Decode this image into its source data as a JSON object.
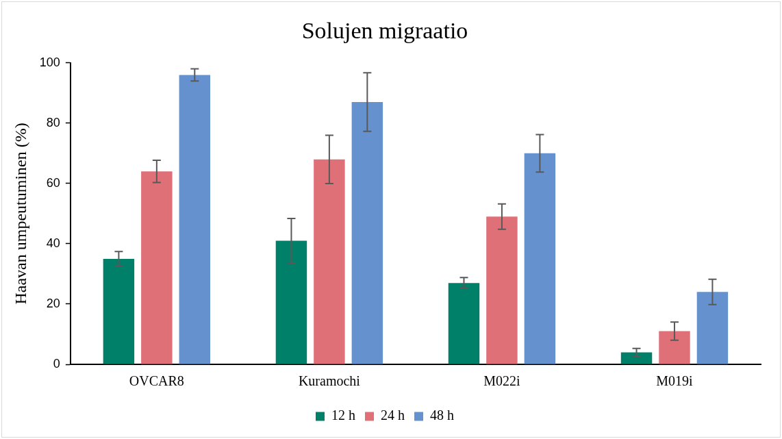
{
  "chart_data": {
    "type": "bar",
    "title": "Solujen migraatio",
    "ylabel": "Haavan umpeutuminen (%)",
    "categories": [
      "OVCAR8",
      "Kuramochi",
      "M022i",
      "M019i"
    ],
    "series": [
      {
        "name": "12 h",
        "color": "#007f69",
        "values": [
          35,
          41,
          27,
          4
        ],
        "errors": [
          2.4,
          7.4,
          1.8,
          1.3
        ]
      },
      {
        "name": "24 h",
        "color": "#df7077",
        "values": [
          64,
          68,
          49,
          11
        ],
        "errors": [
          3.7,
          8,
          4.2,
          3
        ]
      },
      {
        "name": "48 h",
        "color": "#6591cf",
        "values": [
          96,
          87,
          70,
          24
        ],
        "errors": [
          2,
          9.7,
          6.2,
          4.2
        ]
      }
    ],
    "ylim": [
      0,
      100
    ],
    "yticks": [
      0,
      20,
      40,
      60,
      80,
      100
    ],
    "grid": false,
    "legend": "bottom"
  }
}
